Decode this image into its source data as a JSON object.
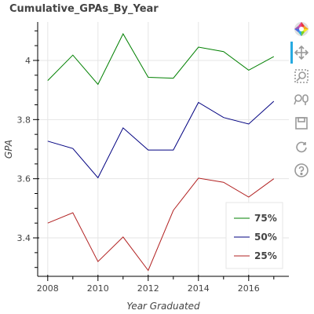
{
  "title": "Cumulative_GPAs_By_Year",
  "toolbar": {
    "tools": [
      "bokeh-logo-icon",
      "pan-icon",
      "box-zoom-icon",
      "wheel-zoom-icon",
      "save-icon",
      "reset-icon",
      "help-icon"
    ]
  },
  "chart_data": {
    "type": "line",
    "title": "Cumulative_GPAs_By_Year",
    "xlabel": "Year Graduated",
    "ylabel": "GPA",
    "x": [
      2008,
      2009,
      2010,
      2011,
      2012,
      2013,
      2014,
      2015,
      2016,
      2017
    ],
    "xlim": [
      2007.6,
      2017.6
    ],
    "ylim": [
      3.27,
      4.13
    ],
    "x_ticks": [
      2008,
      2010,
      2012,
      2014,
      2016
    ],
    "x_tick_labels": [
      "2008",
      "2010",
      "2012",
      "2014",
      "2016"
    ],
    "y_ticks": [
      3.4,
      3.6,
      3.8,
      4.0
    ],
    "y_tick_labels": [
      "3.4",
      "3.6",
      "3.8",
      "4"
    ],
    "grid": true,
    "legend_position": "bottom-right",
    "series": [
      {
        "name": "75%",
        "color": "#008000",
        "values": [
          3.932,
          4.018,
          3.919,
          4.09,
          3.943,
          3.94,
          4.045,
          4.03,
          3.967,
          4.013
        ]
      },
      {
        "name": "50%",
        "color": "#000080",
        "values": [
          3.727,
          3.702,
          3.603,
          3.772,
          3.697,
          3.697,
          3.858,
          3.807,
          3.785,
          3.862
        ]
      },
      {
        "name": "25%",
        "color": "#b22222",
        "values": [
          3.45,
          3.485,
          3.32,
          3.403,
          3.29,
          3.493,
          3.602,
          3.588,
          3.538,
          3.6
        ]
      }
    ]
  }
}
